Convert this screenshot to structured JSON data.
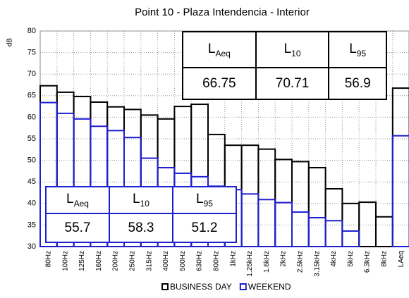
{
  "chart_data": {
    "type": "bar",
    "title": "Point 10 - Plaza Intendencia - Interior",
    "y_label": "dB",
    "categories": [
      "80Hz",
      "100Hz",
      "125Hz",
      "160Hz",
      "200Hz",
      "250Hz",
      "315Hz",
      "400Hz",
      "500Hz",
      "630Hz",
      "800Hz",
      "1kHz",
      "1.25kHz",
      "1.6kHz",
      "2kHz",
      "2.5kHz",
      "3.15kHz",
      "4kHz",
      "5kHz",
      "6.3kHz",
      "8kHz",
      "LAeq"
    ],
    "series": [
      {
        "name": "BUSINESS DAY",
        "color": "#000000",
        "values": [
          67.3,
          65.8,
          64.8,
          63.5,
          62.4,
          61.8,
          60.5,
          59.6,
          62.5,
          63.0,
          56.0,
          53.5,
          53.5,
          52.6,
          50.2,
          49.7,
          48.3,
          43.4,
          40.0,
          40.3,
          36.9,
          66.75
        ]
      },
      {
        "name": "WEEKEND",
        "color": "#1f1fd0",
        "values": [
          63.4,
          60.9,
          59.6,
          57.9,
          56.9,
          55.3,
          50.5,
          48.3,
          47.0,
          46.2,
          44.0,
          43.2,
          42.2,
          40.9,
          40.2,
          38.0,
          36.7,
          36.0,
          33.6,
          null,
          null,
          55.7
        ]
      }
    ],
    "ylim": [
      30,
      80
    ],
    "yticks": [
      30,
      35,
      40,
      45,
      50,
      55,
      60,
      65,
      70,
      75,
      80
    ],
    "grid": true,
    "legend": "bottom"
  },
  "tables": [
    {
      "color": "#000000",
      "headers": [
        {
          "base": "L",
          "sub": "Aeq"
        },
        {
          "base": "L",
          "sub": "10"
        },
        {
          "base": "L",
          "sub": "95"
        }
      ],
      "values": [
        66.75,
        70.71,
        56.9
      ]
    },
    {
      "color": "#1f1fd0",
      "headers": [
        {
          "base": "L",
          "sub": "Aeq"
        },
        {
          "base": "L",
          "sub": "10"
        },
        {
          "base": "L",
          "sub": "95"
        }
      ],
      "values": [
        55.7,
        58.3,
        51.2
      ]
    }
  ]
}
